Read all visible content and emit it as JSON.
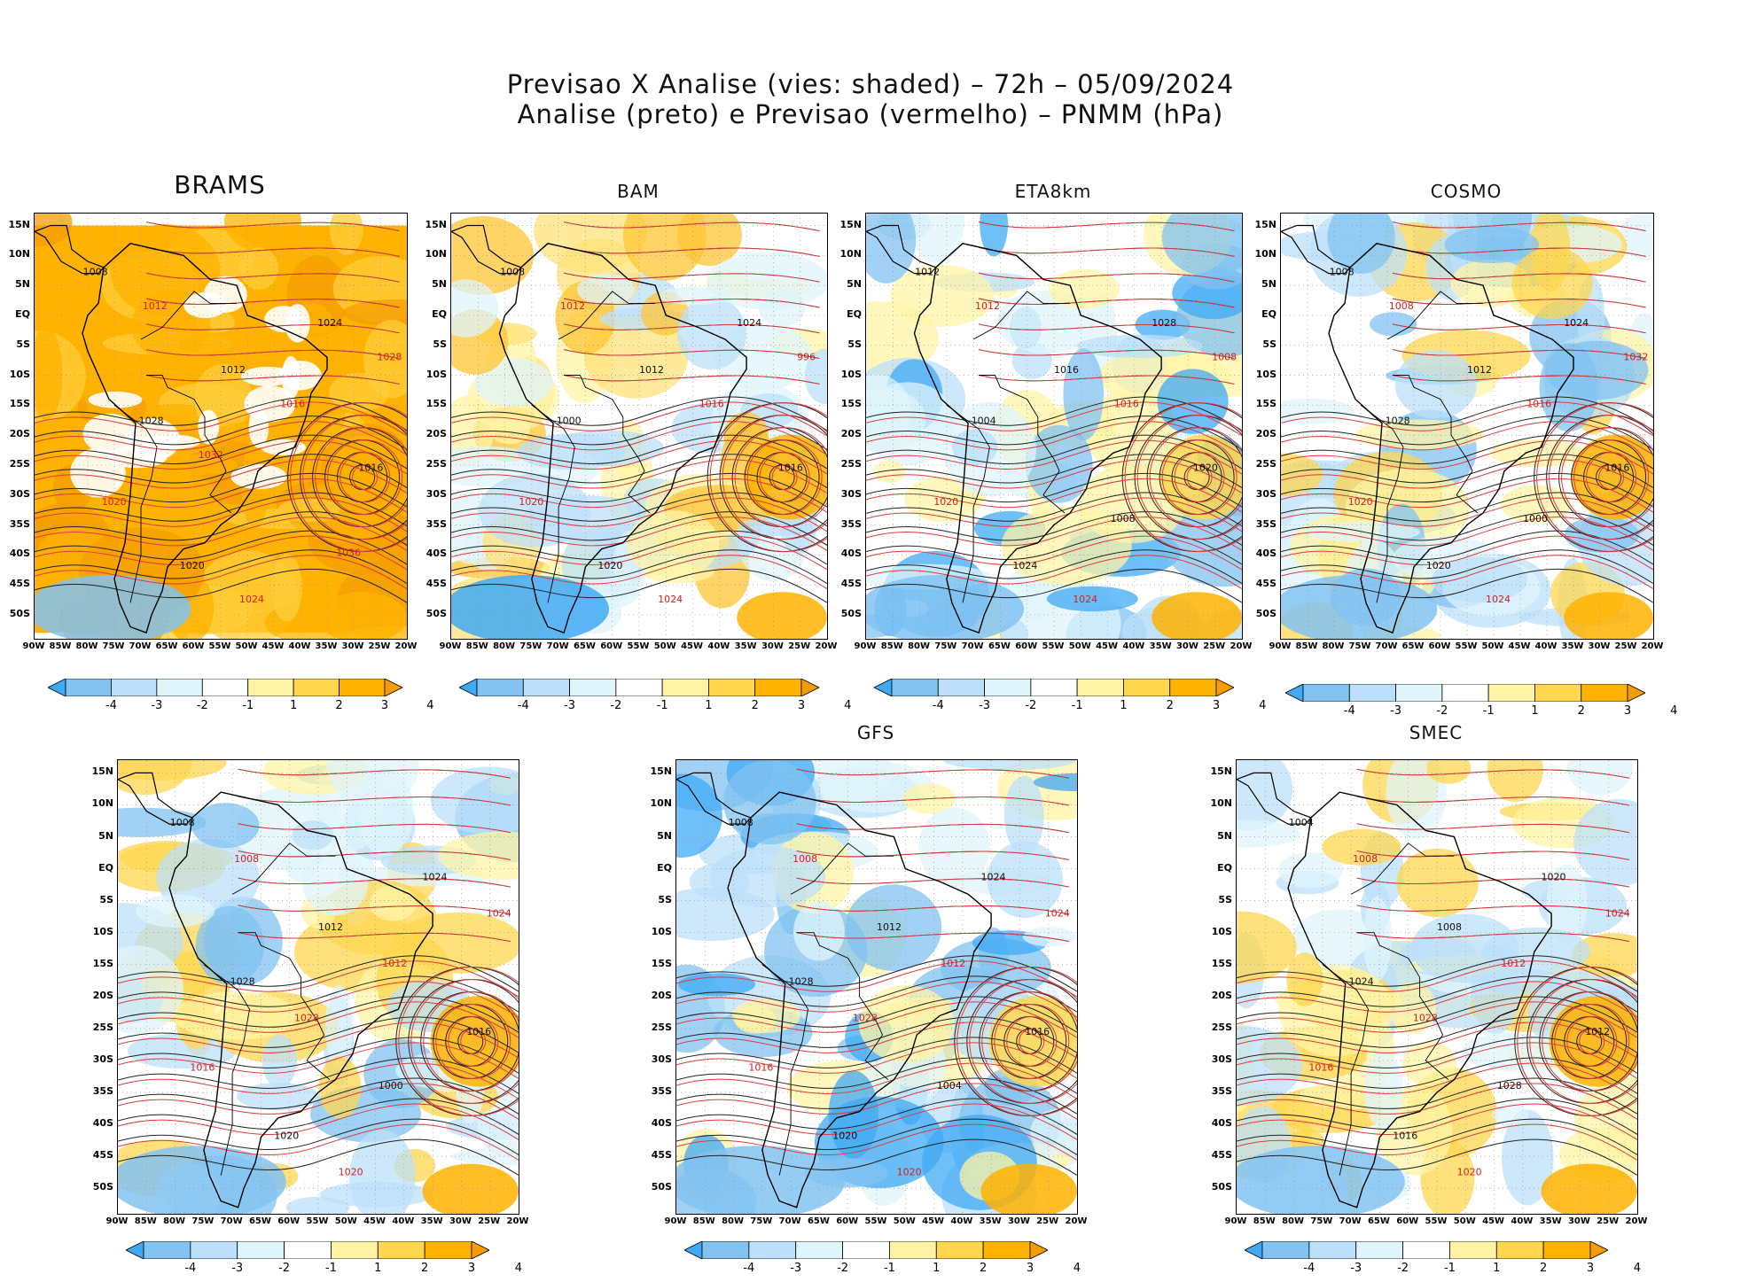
{
  "header": {
    "line1": "Previsao X Analise (vies: shaded) – 72h – 05/09/2024",
    "line2": "Analise (preto) e Previsao (vermelho) – PNMM (hPa)"
  },
  "axes": {
    "lat_labels": [
      "15N",
      "10N",
      "5N",
      "EQ",
      "5S",
      "10S",
      "15S",
      "20S",
      "25S",
      "30S",
      "35S",
      "40S",
      "45S",
      "50S"
    ],
    "lon_labels": [
      "90W",
      "85W",
      "80W",
      "75W",
      "70W",
      "65W",
      "60W",
      "55W",
      "50W",
      "45W",
      "40W",
      "35W",
      "30W",
      "25W",
      "20W"
    ]
  },
  "colorbar": {
    "labels": [
      "-4",
      "-3",
      "-2",
      "-1",
      "1",
      "2",
      "3",
      "4"
    ],
    "colors": [
      "#3fa9f5",
      "#82c3f2",
      "#bce0fa",
      "#dff4fb",
      "#ffffff",
      "#fff4a6",
      "#ffd74f",
      "#ffb300",
      "#f59d00"
    ]
  },
  "panels": [
    {
      "name": "BRAMS",
      "style": "orange",
      "cb_labels": [
        "-4",
        "-3",
        "-2",
        "-1",
        "1",
        "2",
        "3",
        "4"
      ],
      "analysis_labels": [
        "1008",
        "1012",
        "1016",
        "1020",
        "1024",
        "1028"
      ],
      "forecast_labels": [
        "1012",
        "1016",
        "1020",
        "1024",
        "1028",
        "1032",
        "1036"
      ]
    },
    {
      "name": "BAM",
      "style": "warm",
      "cb_labels": [
        "-4",
        "-3",
        "-2",
        "-1",
        "1",
        "2",
        "3",
        "4"
      ],
      "analysis_labels": [
        "1008",
        "1012",
        "1016",
        "1020",
        "1024",
        "1000"
      ],
      "forecast_labels": [
        "1012",
        "1016",
        "1020",
        "1024",
        "996"
      ]
    },
    {
      "name": "ETA8km",
      "style": "blue",
      "cb_labels": [
        "-4",
        "-3",
        "-2",
        "-1",
        "1",
        "2",
        "3",
        "4"
      ],
      "analysis_labels": [
        "1012",
        "1016",
        "1020",
        "1024",
        "1028",
        "1004",
        "1008"
      ],
      "forecast_labels": [
        "1012",
        "1016",
        "1020",
        "1024",
        "1008"
      ]
    },
    {
      "name": "COSMO",
      "style": "mixed",
      "cb_labels": [
        "-4",
        "-3",
        "-2",
        "-1",
        "1",
        "2",
        "3",
        "4"
      ],
      "analysis_labels": [
        "1008",
        "1012",
        "1016",
        "1020",
        "1024",
        "1028",
        "1000"
      ],
      "forecast_labels": [
        "1008",
        "1016",
        "1020",
        "1024",
        "1032"
      ]
    },
    {
      "name": "",
      "style": "mixed",
      "cb_labels": [
        "-4",
        "-3",
        "-2",
        "-1",
        "1",
        "2",
        "3",
        "4"
      ],
      "analysis_labels": [
        "1008",
        "1012",
        "1016",
        "1020",
        "1024",
        "1028",
        "1000"
      ],
      "forecast_labels": [
        "1008",
        "1012",
        "1016",
        "1020",
        "1024",
        "1028"
      ]
    },
    {
      "name": "GFS",
      "style": "blue",
      "cb_labels": [
        "-4",
        "-3",
        "-2",
        "-1",
        "1",
        "2",
        "3",
        "4"
      ],
      "analysis_labels": [
        "1008",
        "1012",
        "1016",
        "1020",
        "1024",
        "1028",
        "1004"
      ],
      "forecast_labels": [
        "1008",
        "1012",
        "1016",
        "1020",
        "1024",
        "1028"
      ]
    },
    {
      "name": "SMEC",
      "style": "light",
      "cb_labels": [
        "-4",
        "-3",
        "-2",
        "-1",
        "1",
        "2",
        "3",
        "4"
      ],
      "analysis_labels": [
        "1004",
        "1008",
        "1012",
        "1016",
        "1020",
        "1024",
        "1028"
      ],
      "forecast_labels": [
        "1008",
        "1012",
        "1016",
        "1020",
        "1024",
        "1028"
      ]
    }
  ]
}
